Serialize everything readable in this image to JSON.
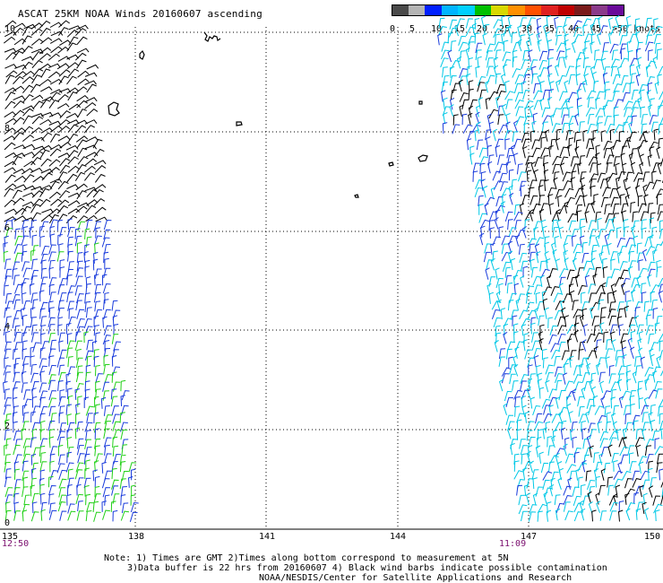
{
  "title": "ASCAT 25KM NOAA Winds 20160607 ascending",
  "colorbar": {
    "labels": [
      "0",
      "5",
      "10",
      "15",
      "20",
      "25",
      "30",
      "35",
      "40",
      "45",
      ">50 knots"
    ],
    "colors": [
      "#4a4a4a",
      "#b4b4b4",
      "#0020ff",
      "#00b4ff",
      "#00d0ff",
      "#00c000",
      "#d8d800",
      "#ff9000",
      "#ff5000",
      "#e02020",
      "#c00000",
      "#7a1a1a",
      "#8a3a8a",
      "#6a0a9a"
    ]
  },
  "lat_labels": [
    "10",
    "8",
    "6",
    "4",
    "2",
    "0"
  ],
  "lon_labels": [
    "135",
    "138",
    "141",
    "144",
    "147",
    "150"
  ],
  "times": {
    "left": "12:50",
    "right": "11:09"
  },
  "notes": [
    "Note: 1) Times are GMT 2)Times along bottom correspond to measurement at 5N",
    "3)Data buffer is 22 hrs from 20160607 4) Black wind barbs indicate possible contamination",
    "NOAA/NESDIS/Center for Satellite Applications and Research"
  ],
  "wind_colors": {
    "contaminated": "#000000",
    "speed_5_10": "#00c8e6",
    "speed_10_15": "#1a3cdc",
    "speed_15_20": "#22d018"
  }
}
